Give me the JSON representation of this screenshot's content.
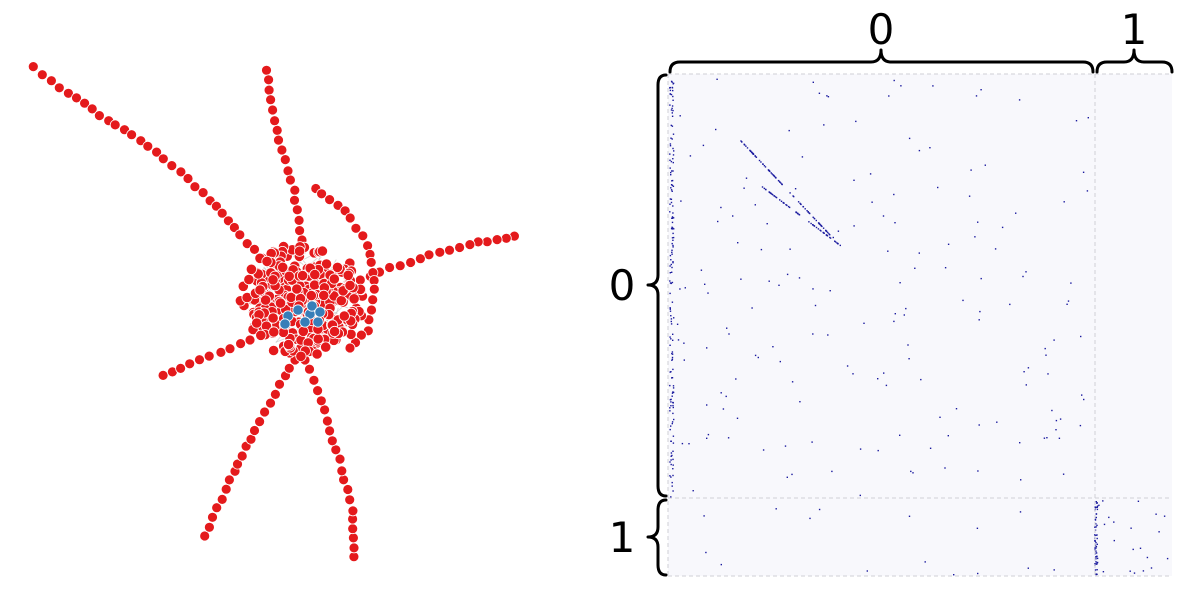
{
  "figure": {
    "left_panel": {
      "type": "network-graph",
      "node_colors": [
        "#e41a1c",
        "#377eb8"
      ],
      "node_outline": "#ffffff",
      "communities": [
        {
          "id": 0,
          "color": "#e41a1c"
        },
        {
          "id": 1,
          "color": "#377eb8"
        }
      ]
    },
    "right_panel": {
      "type": "block-adjacency-matrix",
      "background_color": "#f8f8fc",
      "dot_color": "#1a1a9e",
      "blocks": [
        {
          "label": "0",
          "fraction": 0.845
        },
        {
          "label": "1",
          "fraction": 0.155
        }
      ]
    }
  }
}
